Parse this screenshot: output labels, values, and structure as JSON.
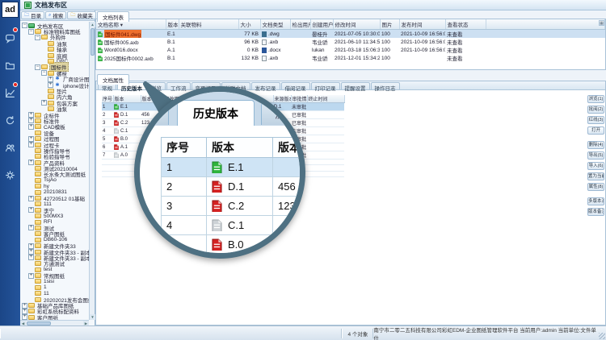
{
  "app": {
    "logo": "ad",
    "title": "文档发布区"
  },
  "appbar": {
    "icons": [
      {
        "name": "chat-icon",
        "badge": true
      },
      {
        "name": "folder-icon",
        "badge": false
      },
      {
        "name": "chart-icon",
        "badge": true
      },
      {
        "name": "refresh-icon",
        "badge": false
      },
      {
        "name": "people-icon",
        "badge": false
      },
      {
        "name": "gear-icon",
        "badge": false
      }
    ]
  },
  "left_panel": {
    "tabs": [
      {
        "label": "目录",
        "icon": "catalog-icon"
      },
      {
        "label": "搜索",
        "icon": "search-icon"
      },
      {
        "label": "收藏夹",
        "icon": "favorites-icon"
      }
    ],
    "tree": [
      {
        "d": 0,
        "e": "-",
        "i": "root",
        "t": "文档发布区"
      },
      {
        "d": 1,
        "e": "-",
        "i": "folder",
        "t": "标准物料库图纸"
      },
      {
        "d": 2,
        "e": "-",
        "i": "folder",
        "t": "外购件"
      },
      {
        "d": 3,
        "e": "0",
        "i": "folder",
        "t": "油泵"
      },
      {
        "d": 3,
        "e": "0",
        "i": "folder",
        "t": "轴承"
      },
      {
        "d": 3,
        "e": "0",
        "i": "folder",
        "t": "底阀"
      },
      {
        "d": 3,
        "e": "0",
        "i": "folder",
        "t": "DRC"
      },
      {
        "d": 2,
        "e": "-",
        "i": "folder",
        "t": "国标件",
        "sel": true
      },
      {
        "d": 3,
        "e": "-",
        "i": "folder",
        "t": "螺栓"
      },
      {
        "d": 4,
        "e": "+",
        "i": "star",
        "t": "厂商设计图纸"
      },
      {
        "d": 4,
        "e": "+",
        "i": "star",
        "t": "iphone设计模板"
      },
      {
        "d": 3,
        "e": "0",
        "i": "folder",
        "t": "垫片"
      },
      {
        "d": 3,
        "e": "0",
        "i": "folder",
        "t": "内六角"
      },
      {
        "d": 3,
        "e": "+",
        "i": "folder",
        "t": "包装方案"
      },
      {
        "d": 3,
        "e": "0",
        "i": "folder",
        "t": "油泵"
      },
      {
        "d": 1,
        "e": "+",
        "i": "folder",
        "t": "企标件"
      },
      {
        "d": 1,
        "e": "+",
        "i": "folder",
        "t": "标准件"
      },
      {
        "d": 1,
        "e": "+",
        "i": "folder",
        "t": "CAD模板"
      },
      {
        "d": 1,
        "e": "0",
        "i": "folder",
        "t": "设备"
      },
      {
        "d": 1,
        "e": "+",
        "i": "folder",
        "t": "过程图"
      },
      {
        "d": 1,
        "e": "+",
        "i": "folder",
        "t": "过程卡"
      },
      {
        "d": 1,
        "e": "0",
        "i": "folder",
        "t": "操作指导书"
      },
      {
        "d": 1,
        "e": "0",
        "i": "folder",
        "t": "检验指导书"
      },
      {
        "d": 1,
        "e": "+",
        "i": "folder",
        "t": "产品资料"
      },
      {
        "d": 1,
        "e": "0",
        "i": "folder",
        "t": "测试20210004"
      },
      {
        "d": 1,
        "e": "0",
        "i": "folder",
        "t": "长水条大测试图纸"
      },
      {
        "d": 1,
        "e": "0",
        "i": "folder",
        "t": "TsjAo"
      },
      {
        "d": 1,
        "e": "0",
        "i": "folder",
        "t": "hy"
      },
      {
        "d": 1,
        "e": "0",
        "i": "folder",
        "t": "20210831"
      },
      {
        "d": 1,
        "e": "+",
        "i": "folder",
        "t": "42720512 01基础"
      },
      {
        "d": 1,
        "e": "0",
        "i": "folder",
        "t": "111"
      },
      {
        "d": 1,
        "e": "+",
        "i": "folder",
        "t": "李宁"
      },
      {
        "d": 1,
        "e": "0",
        "i": "folder",
        "t": "500MX3"
      },
      {
        "d": 1,
        "e": "0",
        "i": "folder",
        "t": "RFI"
      },
      {
        "d": 1,
        "e": "+",
        "i": "folder",
        "t": "测试"
      },
      {
        "d": 1,
        "e": "0",
        "i": "folder",
        "t": "客户图纸"
      },
      {
        "d": 1,
        "e": "0",
        "i": "folder",
        "t": "DB60-106"
      },
      {
        "d": 1,
        "e": "+",
        "i": "folder",
        "t": "新建文件夹33"
      },
      {
        "d": 1,
        "e": "+",
        "i": "folder",
        "t": "新建文件夹33 - 副本"
      },
      {
        "d": 1,
        "e": "+",
        "i": "folder",
        "t": "新建文件夹33 - 副本 - 副本"
      },
      {
        "d": 1,
        "e": "0",
        "i": "folder",
        "t": "方通测试"
      },
      {
        "d": 1,
        "e": "0",
        "i": "folder",
        "t": "test"
      },
      {
        "d": 1,
        "e": "+",
        "i": "folder",
        "t": "常规图纸"
      },
      {
        "d": 1,
        "e": "0",
        "i": "folder",
        "t": "1sisi"
      },
      {
        "d": 1,
        "e": "0",
        "i": "folder",
        "t": "1"
      },
      {
        "d": 1,
        "e": "0",
        "i": "folder",
        "t": "11"
      },
      {
        "d": 1,
        "e": "0",
        "i": "folder",
        "t": "20202021发布会图纸"
      },
      {
        "d": 0,
        "e": "+",
        "i": "folder",
        "t": "基础产品库图纸"
      },
      {
        "d": 0,
        "e": "+",
        "i": "folder",
        "t": "彩虹系统标配资料"
      },
      {
        "d": 0,
        "e": "+",
        "i": "folder",
        "t": "客户图纸"
      },
      {
        "d": 0,
        "e": "+",
        "i": "folder",
        "t": "研发部"
      },
      {
        "d": 0,
        "e": "+",
        "i": "folder",
        "t": "行政部"
      },
      {
        "d": 0,
        "e": "+",
        "i": "folder",
        "t": "塑胶部"
      }
    ]
  },
  "file_list": {
    "tab": "文档列表",
    "columns": [
      "文档名称",
      "版本",
      "关联物料",
      "大小",
      "文档类型",
      "检出用户",
      "创建用户",
      "修改时间",
      "图片",
      "发布时间",
      "查看状态",
      ""
    ],
    "rows": [
      {
        "name": "国标件041.dwg",
        "hl": true,
        "sel": true,
        "ver": "E.1",
        "material": "",
        "size": "77 KB",
        "type": ".dwg",
        "type_icon": "dwg",
        "checkout": "",
        "creator": "晏桂升",
        "modified": "2021-07-05 10:30:06",
        "pic": "100",
        "publish": "2021-10-09 16:56:08",
        "view": "未查看"
      },
      {
        "name": "国标件005.axb",
        "hl": false,
        "sel": false,
        "ver": "B.1",
        "material": "",
        "size": "96 KB",
        "type": ".axb",
        "type_icon": "axb",
        "checkout": "",
        "creator": "韦业骄",
        "modified": "2021-06-10 11:34:50",
        "pic": "100",
        "publish": "2021-10-09 16:56:08",
        "view": "未查看"
      },
      {
        "name": "Word016.docx",
        "hl": false,
        "sel": false,
        "ver": "A.1",
        "material": "",
        "size": "0 KB",
        "type": ".docx",
        "type_icon": "docx",
        "checkout": "",
        "creator": "lukan",
        "modified": "2021-03-18 15:06:37",
        "pic": "100",
        "publish": "2021-10-09 16:56:08",
        "view": "未查看"
      },
      {
        "name": "2025国标件0002.axb",
        "hl": false,
        "sel": false,
        "ver": "B.1",
        "material": "",
        "size": "132 KB",
        "type": ".axb",
        "type_icon": "axb",
        "checkout": "",
        "creator": "韦业骄",
        "modified": "2021-12-01 15:34:25",
        "pic": "100",
        "publish": "",
        "view": "未查看"
      }
    ]
  },
  "properties": {
    "tab": "文档属性",
    "tabs": [
      "常规",
      "历史版本",
      "浏览",
      "工作流",
      "变更记录",
      "关联文档",
      "发布记录",
      "借阅记录",
      "打印记录",
      "提醒设置",
      "操作日志"
    ],
    "selected_tab": "历史版本",
    "history": {
      "columns": [
        "序号",
        "版本",
        "版本备注",
        "修改用户",
        "",
        "来源版本",
        "审批情况",
        "终止时间"
      ],
      "rows": [
        {
          "no": "1",
          "ver": "E.1",
          "icon": "green",
          "note": "",
          "src": "D.1",
          "approval": "未审批",
          "end": "",
          "sel": true
        },
        {
          "no": "2",
          "ver": "D.1",
          "icon": "red",
          "note": "456",
          "src": "C.2",
          "approval": "已审批",
          "end": "",
          "sel": false
        },
        {
          "no": "3",
          "ver": "C.2",
          "icon": "red",
          "note": "123",
          "src": "",
          "approval": "已审批",
          "end": "",
          "sel": false
        },
        {
          "no": "4",
          "ver": "C.1",
          "icon": "grey",
          "note": "",
          "src": "",
          "approval": "未审批",
          "end": "",
          "sel": false
        },
        {
          "no": "5",
          "ver": "B.0",
          "icon": "red",
          "note": "23",
          "src": "",
          "approval": "已审批",
          "end": "",
          "sel": false
        },
        {
          "no": "6",
          "ver": "A.1",
          "icon": "red",
          "note": "12",
          "src": "",
          "approval": "已审批",
          "end": "",
          "sel": false
        },
        {
          "no": "7",
          "ver": "A.0",
          "icon": "grey",
          "note": "",
          "src": "",
          "approval": "未审批",
          "end": "",
          "sel": false
        }
      ]
    }
  },
  "side_buttons": [
    {
      "label": "浏览(1)",
      "group_end": false
    },
    {
      "label": "批阅(2)",
      "group_end": false
    },
    {
      "label": "红线(3)",
      "group_end": false
    },
    {
      "label": "打开",
      "group_end": true
    },
    {
      "label": "删除(4)",
      "group_end": false
    },
    {
      "label": "导出(5)",
      "group_end": false
    },
    {
      "label": "导入(6)",
      "group_end": false
    },
    {
      "label": "置为当前(a)",
      "group_end": false
    },
    {
      "label": "属性(8)",
      "group_end": true
    },
    {
      "label": "多版本浏览",
      "group_end": false
    },
    {
      "label": "版本备注",
      "group_end": false
    }
  ],
  "magnifier": {
    "tabs": [
      {
        "label": "历史版本",
        "selected": true
      },
      {
        "label": "浏览",
        "selected": false
      },
      {
        "label": "工作流",
        "selected": false
      }
    ],
    "columns": [
      "序号",
      "版本",
      "版本备注"
    ],
    "rows": [
      {
        "no": "1",
        "ver": "E.1",
        "icon": "green",
        "note": "",
        "sel": true
      },
      {
        "no": "2",
        "ver": "D.1",
        "icon": "red",
        "note": "456",
        "sel": false
      },
      {
        "no": "3",
        "ver": "C.2",
        "icon": "red",
        "note": "123",
        "sel": false
      },
      {
        "no": "4",
        "ver": "C.1",
        "icon": "grey",
        "note": "",
        "sel": false
      },
      {
        "no": "5",
        "ver": "B.0",
        "icon": "red",
        "note": "23",
        "sel": false
      },
      {
        "no": "6",
        "ver": "A.1",
        "icon": "red",
        "note": "12",
        "sel": false
      },
      {
        "no": "7",
        "ver": "A.0",
        "icon": "grey",
        "note": "",
        "sel": false
      }
    ]
  },
  "status_bar": {
    "object_count": "4 个对象",
    "info": "南宁市二零二五科技有限公司彩虹EDM-企业图纸管理软件平台  当前用户:admin  当前单位:文件单位"
  },
  "colors": {
    "accent_navy": "#1b4687",
    "selection_blue": "#cde0f2",
    "highlight_orange": "#ee6f2d",
    "magnifier_ring": "#4e7082",
    "ver_green": "#2eb43c",
    "ver_red": "#d42222",
    "ver_grey": "#cdd2d6"
  }
}
